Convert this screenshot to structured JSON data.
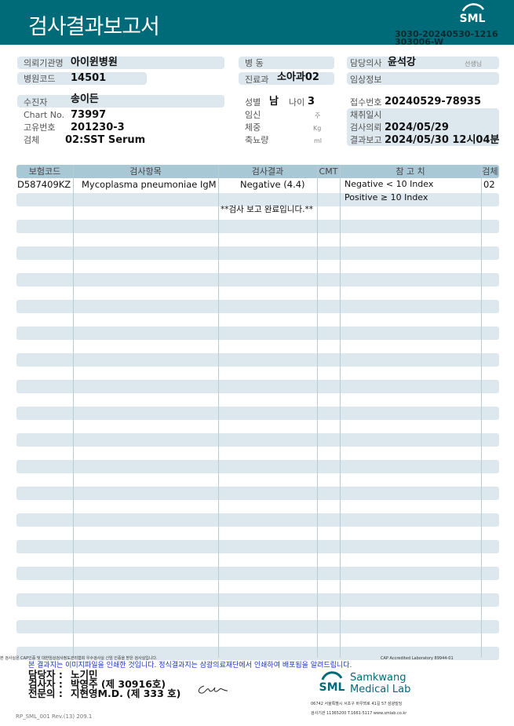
{
  "header": {
    "title": "검사결과보고서",
    "logo": "SML",
    "code1": "3030-20240530-1216",
    "code2": "303006-W"
  },
  "info": {
    "requesting_org_label": "의뢰기관명",
    "requesting_org": "아이윈병원",
    "hospital_code_label": "병원코드",
    "hospital_code": "14501",
    "ward_label": "병 동",
    "ward": "",
    "department_label": "진료과",
    "department": "소아과02",
    "doctor_label": "담당의사",
    "doctor": "윤석강",
    "doctor_suffix": "선생님",
    "clinical_info_label": "임상정보",
    "clinical_info": "",
    "patient_label": "수진자",
    "patient": "송이든",
    "chart_label": "Chart No.",
    "chart": "73997",
    "unique_label": "고유번호",
    "unique": "201230-3",
    "specimen_label": "검체",
    "specimen": "02:SST Serum",
    "sex_label": "성별",
    "sex": "남",
    "age_label": "나이",
    "age": "3",
    "pregnancy_label": "임신",
    "pregnancy_unit": "주",
    "weight_label": "체중",
    "weight_unit": "Kg",
    "urine_label": "축뇨량",
    "urine_unit": "ml",
    "receipt_label": "접수번호",
    "receipt": "20240529-78935",
    "collect_label": "채취일시",
    "collect": "",
    "request_label": "검사의뢰",
    "request": "2024/05/29",
    "report_label": "결과보고",
    "report": "2024/05/30 12시04분"
  },
  "table": {
    "columns": [
      "보험코드",
      "검사항목",
      "검사결과",
      "CMT",
      "참 고 치",
      "검체"
    ],
    "rows": [
      {
        "code": "D587409KZ",
        "item": "Mycoplasma pneumoniae IgM",
        "result": "Negative (4.4)",
        "cmt": "",
        "ref": "Negative < 10 Index",
        "specimen": "02"
      },
      {
        "code": "",
        "item": "",
        "result": "",
        "cmt": "",
        "ref": "Positive ≥ 10 Index",
        "specimen": ""
      }
    ],
    "complete_note": "**검사  보고  완료입니다.**"
  },
  "footer": {
    "cap_note": "본 검사실은 CAP인증 및 대한임상검사정도관리협회 우수검사실 신임 인증을 받은 검사실입니다.",
    "cap_number": "CAP Accredited Laboratory 89944-01",
    "notice": "본 결과지는 이미지파일을 인쇄한 것입니다. 정식결과지는 삼광의료재단에서 인쇄하여 배포됨을 알려드립니다.",
    "manager_label": "담당자 :",
    "manager": "노기민",
    "examiner_label": "검사자 :",
    "examiner": "박영주 (제 30916호)",
    "specialist_label": "전문의 :",
    "specialist": "지현영M.D. (제 333 호)",
    "form_code": "RP_SML_001 Rev.(13) 209.1",
    "lab_logo": "SML",
    "lab_name1": "Samkwang",
    "lab_name2": "Medical Lab",
    "address": "06742 서울특별시 서초구 바우뫼로 41길 57 삼광빌딩",
    "contact": "검사기관 11365200 T.1661-5117 www.smlab.co.kr",
    "accent": "#006b78"
  }
}
